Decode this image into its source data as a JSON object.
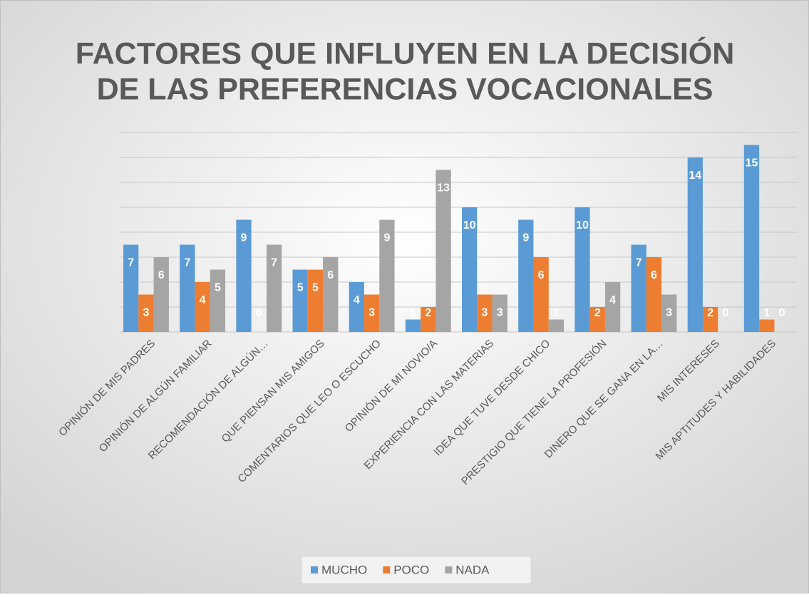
{
  "chart_data": {
    "type": "bar",
    "title": [
      "FACTORES QUE INFLUYEN EN LA DECISIÓN",
      "DE LAS PREFERENCIAS VOCACIONALES"
    ],
    "categories": [
      "OPINIÓN DE MIS PADRES",
      "OPINIÓN DE ALGÚN FAMILIAR",
      "RECOMENDACIÓN DE ALGÚN…",
      "QUE PIENSAN MIS AMIGOS",
      "COMENTARIOS QUE LEO O ESCUCHO",
      "OPINIÓN DE MI NOVIO/A",
      "EXPERIENCIA CON LAS MATERIAS",
      "IDEA QUE TUVE DESDE CHICO",
      "PRESTIGIO QUE TIENE LA PROFESIÓN",
      "DINERO QUE SE GANA EN LA…",
      "MIS INTERESES",
      "MIS APTITUDES Y HABILIDADES"
    ],
    "series": [
      {
        "name": "MUCHO",
        "color": "#5b9bd5",
        "values": [
          7,
          7,
          9,
          5,
          4,
          1,
          10,
          9,
          10,
          7,
          14,
          15
        ]
      },
      {
        "name": "POCO",
        "color": "#ed7d31",
        "values": [
          3,
          4,
          0,
          5,
          3,
          2,
          3,
          6,
          2,
          6,
          2,
          1
        ]
      },
      {
        "name": "NADA",
        "color": "#a5a5a5",
        "values": [
          6,
          5,
          7,
          6,
          9,
          13,
          3,
          1,
          4,
          3,
          0,
          0
        ]
      }
    ],
    "ylim": [
      0,
      16
    ],
    "yticks": [
      0,
      2,
      4,
      6,
      8,
      10,
      12,
      14,
      16
    ],
    "grid": true,
    "legend": "bottom"
  }
}
